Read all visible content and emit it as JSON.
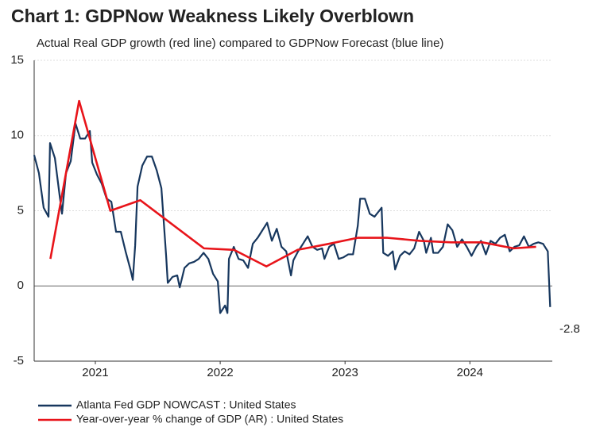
{
  "chart_data": {
    "type": "line",
    "title": "Chart 1: GDPNow Weakness Likely Overblown",
    "subtitle": "Actual Real GDP growth (red line) compared to GDPNow Forecast (blue line)",
    "xlim": [
      2020.51,
      2024.66
    ],
    "xticks": [
      2021,
      2022,
      2023,
      2024
    ],
    "ylim": [
      -5,
      15
    ],
    "yticks": [
      -5,
      0,
      5,
      10,
      15
    ],
    "grid": true,
    "annotations": [
      "-2.8"
    ],
    "series": [
      {
        "name": "Atlanta Fed GDP NOWCAST : United States",
        "color": "#17375e",
        "x": [
          2020.51,
          2020.548,
          2020.586,
          2020.625,
          2020.637,
          2020.676,
          2020.714,
          2020.733,
          2020.765,
          2020.803,
          2020.841,
          2020.879,
          2020.918,
          2020.956,
          2020.975,
          2021.013,
          2021.051,
          2021.09,
          2021.128,
          2021.166,
          2021.204,
          2021.242,
          2021.281,
          2021.3,
          2021.319,
          2021.338,
          2021.376,
          2021.414,
          2021.453,
          2021.491,
          2021.529,
          2021.567,
          2021.58,
          2021.618,
          2021.656,
          2021.676,
          2021.714,
          2021.752,
          2021.79,
          2021.828,
          2021.867,
          2021.905,
          2021.943,
          2021.981,
          2022.0,
          2022.039,
          2022.058,
          2022.07,
          2022.109,
          2022.147,
          2022.185,
          2022.223,
          2022.261,
          2022.3,
          2022.338,
          2022.376,
          2022.414,
          2022.453,
          2022.491,
          2022.529,
          2022.567,
          2022.586,
          2022.624,
          2022.663,
          2022.701,
          2022.739,
          2022.777,
          2022.816,
          2022.835,
          2022.873,
          2022.911,
          2022.949,
          2022.987,
          2023.026,
          2023.064,
          2023.102,
          2023.121,
          2023.159,
          2023.198,
          2023.236,
          2023.274,
          2023.293,
          2023.306,
          2023.344,
          2023.382,
          2023.401,
          2023.44,
          2023.478,
          2023.516,
          2023.554,
          2023.593,
          2023.631,
          2023.65,
          2023.688,
          2023.707,
          2023.745,
          2023.784,
          2023.822,
          2023.86,
          2023.898,
          2023.937,
          2023.975,
          2024.013,
          2024.051,
          2024.089,
          2024.128,
          2024.166,
          2024.204,
          2024.242,
          2024.28,
          2024.319,
          2024.357,
          2024.395,
          2024.433,
          2024.472,
          2024.51,
          2024.548,
          2024.586,
          2024.624,
          2024.643
        ],
        "values": [
          8.7,
          7.5,
          5.2,
          4.6,
          9.5,
          8.5,
          6.0,
          4.8,
          7.5,
          8.3,
          10.8,
          9.8,
          9.8,
          10.3,
          8.2,
          7.4,
          6.8,
          5.8,
          5.6,
          3.6,
          3.6,
          2.3,
          1.1,
          0.4,
          2.7,
          6.6,
          8.0,
          8.6,
          8.6,
          7.7,
          6.5,
          2.0,
          0.2,
          0.6,
          0.7,
          -0.1,
          1.2,
          1.5,
          1.6,
          1.8,
          2.2,
          1.8,
          0.8,
          0.3,
          -1.8,
          -1.3,
          -1.8,
          1.8,
          2.6,
          1.8,
          1.7,
          1.2,
          2.8,
          3.2,
          3.7,
          4.2,
          3.0,
          3.8,
          2.6,
          2.3,
          0.7,
          1.7,
          2.3,
          2.8,
          3.3,
          2.6,
          2.4,
          2.5,
          1.8,
          2.6,
          2.8,
          1.8,
          1.9,
          2.1,
          2.1,
          4.0,
          5.8,
          5.8,
          4.8,
          4.6,
          5.0,
          5.2,
          2.2,
          2.0,
          2.3,
          1.1,
          2.0,
          2.3,
          2.1,
          2.5,
          3.6,
          3.0,
          2.2,
          3.2,
          2.2,
          2.2,
          2.6,
          4.1,
          3.7,
          2.6,
          3.1,
          2.6,
          2.0,
          2.6,
          3.0,
          2.1,
          3.0,
          2.8,
          3.2,
          3.4,
          2.3,
          2.6,
          2.7,
          3.3,
          2.6,
          2.8,
          2.9,
          2.8,
          2.3,
          -1.4
        ]
      },
      {
        "name": "Year-over-year % change of GDP (AR) : United States",
        "color": "#e8141a",
        "x": [
          2020.64,
          2020.87,
          2021.12,
          2021.36,
          2021.87,
          2022.11,
          2022.37,
          2022.62,
          2022.87,
          2023.1,
          2023.34,
          2023.6,
          2023.85,
          2024.1,
          2024.35,
          2024.53
        ],
        "values": [
          1.8,
          12.3,
          5.0,
          5.7,
          2.5,
          2.4,
          1.3,
          2.4,
          2.8,
          3.2,
          3.2,
          3.0,
          2.9,
          2.9,
          2.5,
          2.6
        ]
      }
    ]
  }
}
